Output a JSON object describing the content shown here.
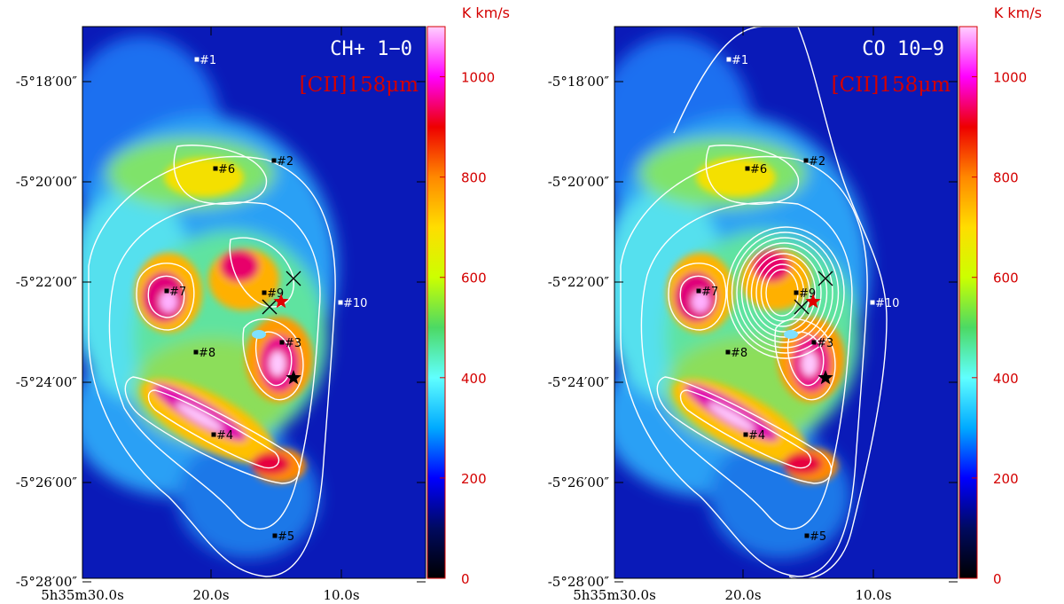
{
  "colorbar": {
    "unit": "K km/s",
    "tick_labels": [
      "0",
      "200",
      "400",
      "600",
      "800",
      "1000"
    ],
    "range": [
      0,
      1100
    ],
    "stops": [
      "#000000",
      "#000a60",
      "#0000ff",
      "#00aaff",
      "#60ffff",
      "#4cd964",
      "#ccff00",
      "#ffdd00",
      "#ff8800",
      "#ee0000",
      "#ff00ff",
      "#ffd0ff"
    ]
  },
  "axes": {
    "y_labels": [
      "-5°18′00″",
      "-5°20′00″",
      "-5°22′00″",
      "-5°24′00″",
      "-5°26′00″",
      "-5°28′00″"
    ],
    "x_labels": [
      "5h35m30.0s",
      "20.0s",
      "10.0s"
    ]
  },
  "sources": [
    "#1",
    "#2",
    "#3",
    "#4",
    "#5",
    "#6",
    "#7",
    "#8",
    "#9",
    "#10"
  ],
  "panels": [
    {
      "id": "left",
      "title_line1": "CH+ 1−0",
      "title_line2": "[CII]158μm"
    },
    {
      "id": "right",
      "title_line1": "CO 10−9",
      "title_line2": "[CII]158μm"
    }
  ]
}
